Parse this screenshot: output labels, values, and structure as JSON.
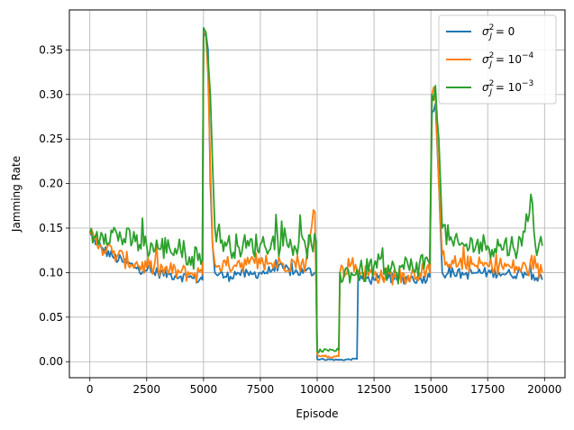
{
  "chart_data": {
    "type": "line",
    "title": "",
    "xlabel": "Episode",
    "ylabel": "Jamming Rate",
    "xlim": [
      -900,
      20900
    ],
    "ylim": [
      -0.018,
      0.395
    ],
    "xticks": [
      0,
      2500,
      5000,
      7500,
      10000,
      12500,
      15000,
      17500,
      20000
    ],
    "xtick_labels": [
      "0",
      "2500",
      "5000",
      "7500",
      "10000",
      "12500",
      "15000",
      "17500",
      "20000"
    ],
    "yticks": [
      0.0,
      0.05,
      0.1,
      0.15,
      0.2,
      0.25,
      0.3,
      0.35
    ],
    "ytick_labels": [
      "0.00",
      "0.05",
      "0.10",
      "0.15",
      "0.20",
      "0.25",
      "0.30",
      "0.35"
    ],
    "grid": true,
    "legend_position": "top-right",
    "series": [
      {
        "name": "σJ² = 0",
        "legend": {
          "base": "σ",
          "sub": "J",
          "sup": "2",
          "rest": " = 0"
        },
        "color": "#1f77b4",
        "points": [
          [
            0,
            0.143
          ],
          [
            500,
            0.128
          ],
          [
            1000,
            0.118
          ],
          [
            1500,
            0.112
          ],
          [
            2000,
            0.106
          ],
          [
            2500,
            0.102
          ],
          [
            3000,
            0.1
          ],
          [
            3500,
            0.098
          ],
          [
            4000,
            0.096
          ],
          [
            4500,
            0.094
          ],
          [
            4950,
            0.092
          ],
          [
            5000,
            0.365
          ],
          [
            5100,
            0.37
          ],
          [
            5200,
            0.35
          ],
          [
            5300,
            0.2
          ],
          [
            5400,
            0.13
          ],
          [
            5500,
            0.1
          ],
          [
            6000,
            0.095
          ],
          [
            6500,
            0.1
          ],
          [
            7000,
            0.097
          ],
          [
            7500,
            0.1
          ],
          [
            8000,
            0.102
          ],
          [
            8500,
            0.105
          ],
          [
            9000,
            0.1
          ],
          [
            9500,
            0.102
          ],
          [
            9950,
            0.1
          ],
          [
            10000,
            0.003
          ],
          [
            11000,
            0.002
          ],
          [
            11750,
            0.003
          ],
          [
            11800,
            0.095
          ],
          [
            12500,
            0.092
          ],
          [
            13000,
            0.095
          ],
          [
            13500,
            0.092
          ],
          [
            14000,
            0.094
          ],
          [
            14500,
            0.093
          ],
          [
            14950,
            0.095
          ],
          [
            15050,
            0.28
          ],
          [
            15200,
            0.29
          ],
          [
            15350,
            0.2
          ],
          [
            15500,
            0.1
          ],
          [
            16000,
            0.1
          ],
          [
            16500,
            0.098
          ],
          [
            17000,
            0.1
          ],
          [
            17500,
            0.1
          ],
          [
            18000,
            0.1
          ],
          [
            18500,
            0.098
          ],
          [
            19000,
            0.1
          ],
          [
            19500,
            0.098
          ],
          [
            19900,
            0.092
          ]
        ]
      },
      {
        "name": "σJ² = 10⁻⁴",
        "legend": {
          "base": "σ",
          "sub": "J",
          "sup": "2",
          "rest": " = 10",
          "sup2": "−4"
        },
        "color": "#ff7f0e",
        "points": [
          [
            0,
            0.143
          ],
          [
            500,
            0.13
          ],
          [
            1000,
            0.122
          ],
          [
            1500,
            0.115
          ],
          [
            2000,
            0.11
          ],
          [
            2500,
            0.106
          ],
          [
            3000,
            0.104
          ],
          [
            3500,
            0.102
          ],
          [
            4000,
            0.1
          ],
          [
            4500,
            0.099
          ],
          [
            4950,
            0.098
          ],
          [
            5000,
            0.368
          ],
          [
            5100,
            0.37
          ],
          [
            5200,
            0.32
          ],
          [
            5300,
            0.22
          ],
          [
            5400,
            0.13
          ],
          [
            5500,
            0.11
          ],
          [
            6000,
            0.108
          ],
          [
            6500,
            0.112
          ],
          [
            7000,
            0.11
          ],
          [
            7500,
            0.11
          ],
          [
            8000,
            0.11
          ],
          [
            8500,
            0.11
          ],
          [
            9000,
            0.112
          ],
          [
            9500,
            0.11
          ],
          [
            9900,
            0.168
          ],
          [
            10000,
            0.008
          ],
          [
            10500,
            0.006
          ],
          [
            10950,
            0.006
          ],
          [
            11000,
            0.1
          ],
          [
            11500,
            0.11
          ],
          [
            12000,
            0.1
          ],
          [
            12500,
            0.098
          ],
          [
            13000,
            0.096
          ],
          [
            13500,
            0.096
          ],
          [
            14000,
            0.097
          ],
          [
            14500,
            0.1
          ],
          [
            14950,
            0.1
          ],
          [
            15050,
            0.3
          ],
          [
            15200,
            0.3
          ],
          [
            15350,
            0.2
          ],
          [
            15500,
            0.12
          ],
          [
            16000,
            0.11
          ],
          [
            16500,
            0.11
          ],
          [
            17000,
            0.108
          ],
          [
            17500,
            0.108
          ],
          [
            18000,
            0.108
          ],
          [
            18500,
            0.106
          ],
          [
            19000,
            0.105
          ],
          [
            19500,
            0.104
          ],
          [
            19900,
            0.1
          ]
        ]
      },
      {
        "name": "σJ² = 10⁻³",
        "legend": {
          "base": "σ",
          "sub": "J",
          "sup": "2",
          "rest": " = 10",
          "sup2": "−3"
        },
        "color": "#2ca02c",
        "points": [
          [
            0,
            0.145
          ],
          [
            250,
            0.14
          ],
          [
            500,
            0.145
          ],
          [
            1000,
            0.145
          ],
          [
            1500,
            0.138
          ],
          [
            2000,
            0.135
          ],
          [
            2500,
            0.13
          ],
          [
            3000,
            0.128
          ],
          [
            3500,
            0.128
          ],
          [
            4000,
            0.125
          ],
          [
            4500,
            0.118
          ],
          [
            4950,
            0.115
          ],
          [
            5000,
            0.375
          ],
          [
            5100,
            0.37
          ],
          [
            5200,
            0.34
          ],
          [
            5300,
            0.3
          ],
          [
            5400,
            0.22
          ],
          [
            5500,
            0.15
          ],
          [
            6000,
            0.13
          ],
          [
            6500,
            0.13
          ],
          [
            7000,
            0.13
          ],
          [
            7500,
            0.132
          ],
          [
            8000,
            0.135
          ],
          [
            8500,
            0.13
          ],
          [
            9000,
            0.13
          ],
          [
            9500,
            0.128
          ],
          [
            9950,
            0.135
          ],
          [
            10000,
            0.012
          ],
          [
            10500,
            0.012
          ],
          [
            10950,
            0.013
          ],
          [
            11000,
            0.1
          ],
          [
            11500,
            0.1
          ],
          [
            12000,
            0.1
          ],
          [
            12500,
            0.108
          ],
          [
            13000,
            0.105
          ],
          [
            13500,
            0.1
          ],
          [
            14000,
            0.108
          ],
          [
            14500,
            0.11
          ],
          [
            14950,
            0.11
          ],
          [
            15050,
            0.3
          ],
          [
            15200,
            0.31
          ],
          [
            15350,
            0.25
          ],
          [
            15500,
            0.15
          ],
          [
            16000,
            0.13
          ],
          [
            16500,
            0.13
          ],
          [
            17000,
            0.132
          ],
          [
            17500,
            0.13
          ],
          [
            18000,
            0.13
          ],
          [
            18500,
            0.13
          ],
          [
            19000,
            0.13
          ],
          [
            19400,
            0.188
          ],
          [
            19600,
            0.13
          ],
          [
            19900,
            0.13
          ]
        ]
      }
    ]
  }
}
